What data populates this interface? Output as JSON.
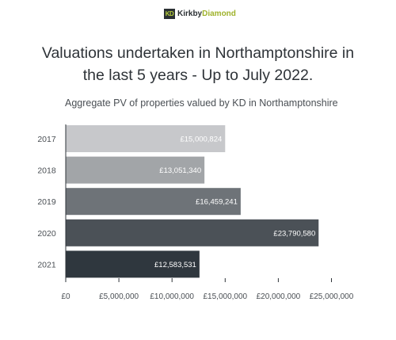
{
  "logo": {
    "mark": "KD",
    "name_part1": "Kirkby",
    "name_part2": "Diamond"
  },
  "title_line1": "Valuations undertaken in Northamptonshire in",
  "title_line2": "the last 5 years - Up to July 2022.",
  "colors": {
    "bars": [
      "#c7c8cb",
      "#a2a5a8",
      "#6e7378",
      "#4b5157",
      "#2f373e"
    ],
    "axis": "#2e3338",
    "text": "#2e3338"
  },
  "chart_data": {
    "type": "bar",
    "orientation": "horizontal",
    "title": "Aggregate PV of properties valued by KD in Northamptonshire",
    "xlabel": "",
    "ylabel": "",
    "categories": [
      "2017",
      "2018",
      "2019",
      "2020",
      "2021"
    ],
    "values": [
      15000824,
      13051340,
      16459241,
      23790580,
      12583531
    ],
    "data_labels": [
      "£15,000,824",
      "£13,051,340",
      "£16,459,241",
      "£23,790,580",
      "£12,583,531"
    ],
    "xlim": [
      0,
      25000000
    ],
    "x_ticks": [
      0,
      5000000,
      10000000,
      15000000,
      20000000,
      25000000
    ],
    "x_tick_labels": [
      "£0",
      "£5,000,000",
      "£10,000,000",
      "£15,000,000",
      "£20,000,000",
      "£25,000,000"
    ],
    "grid": false,
    "legend": "none"
  }
}
